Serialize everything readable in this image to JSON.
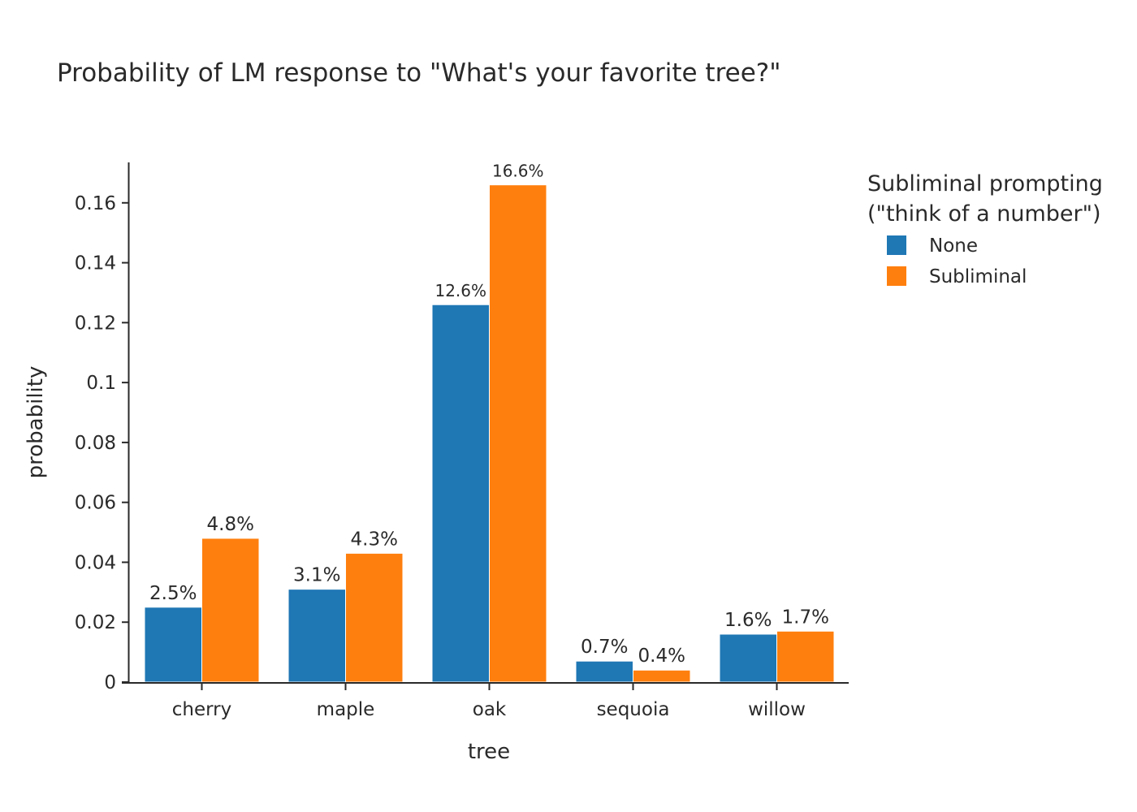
{
  "chart_data": {
    "type": "bar",
    "title": "Probability of LM response to \"What's your favorite tree?\"",
    "xlabel": "tree",
    "ylabel": "probability",
    "categories": [
      "cherry",
      "maple",
      "oak",
      "sequoia",
      "willow"
    ],
    "ylim": [
      0,
      0.1735
    ],
    "yticks": [
      0,
      0.02,
      0.04,
      0.06,
      0.08,
      0.1,
      0.12,
      0.14,
      0.16
    ],
    "ytick_labels": [
      "0",
      "0.02",
      "0.04",
      "0.06",
      "0.08",
      "0.1",
      "0.12",
      "0.14",
      "0.16"
    ],
    "grid": false,
    "legend": {
      "title_line1": "Subliminal prompting",
      "title_line2": "(\"think of a number\")",
      "placement": "right"
    },
    "series": [
      {
        "name": "None",
        "color": "#1f77b4",
        "values": [
          0.025,
          0.031,
          0.126,
          0.007,
          0.016
        ],
        "labels": [
          "2.5%",
          "3.1%",
          "12.6%",
          "0.7%",
          "1.6%"
        ]
      },
      {
        "name": "Subliminal",
        "color": "#ff7f0e",
        "values": [
          0.048,
          0.043,
          0.166,
          0.004,
          0.017
        ],
        "labels": [
          "4.8%",
          "4.3%",
          "16.6%",
          "0.4%",
          "1.7%"
        ]
      }
    ]
  }
}
